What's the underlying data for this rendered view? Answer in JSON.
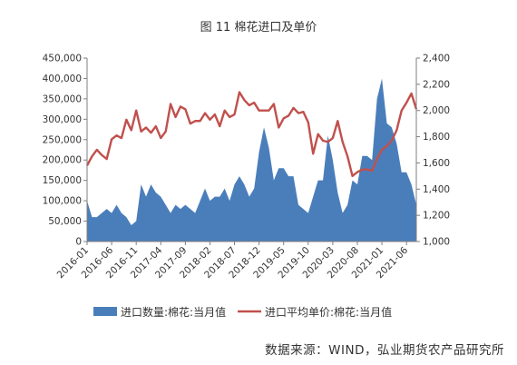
{
  "chart_data": {
    "type": "area+line",
    "title": "图 11  棉花进口及单价",
    "x_ticks": [
      "2016-01",
      "2016-06",
      "2016-11",
      "2017-04",
      "2017-09",
      "2018-02",
      "2018-07",
      "2018-12",
      "2019-05",
      "2019-10",
      "2020-03",
      "2020-08",
      "2021-01",
      "2021-06"
    ],
    "left_axis": {
      "ylim": [
        0,
        450000
      ],
      "ticks": [
        "0",
        "50,000",
        "100,000",
        "150,000",
        "200,000",
        "250,000",
        "300,000",
        "350,000",
        "400,000",
        "450,000"
      ]
    },
    "right_axis": {
      "ylim": [
        1000,
        2400
      ],
      "ticks": [
        "1,000",
        "1,200",
        "1,400",
        "1,600",
        "1,800",
        "2,000",
        "2,200",
        "2,400"
      ]
    },
    "x_start": "2016-01",
    "series": [
      {
        "name": "进口数量:棉花:当月值",
        "kind": "area",
        "axis": "left",
        "color": "#4a7ebb",
        "values": [
          100000,
          60000,
          60000,
          70000,
          80000,
          70000,
          90000,
          70000,
          60000,
          40000,
          50000,
          140000,
          110000,
          140000,
          120000,
          110000,
          90000,
          70000,
          90000,
          80000,
          90000,
          80000,
          70000,
          100000,
          130000,
          100000,
          110000,
          110000,
          130000,
          100000,
          140000,
          160000,
          140000,
          110000,
          130000,
          220000,
          280000,
          230000,
          150000,
          180000,
          180000,
          160000,
          160000,
          90000,
          80000,
          70000,
          110000,
          150000,
          150000,
          260000,
          200000,
          120000,
          70000,
          90000,
          150000,
          140000,
          210000,
          210000,
          200000,
          350000,
          400000,
          290000,
          280000,
          240000,
          170000,
          170000,
          140000,
          90000
        ]
      },
      {
        "name": "进口平均单价:棉花:当月值",
        "kind": "line",
        "axis": "right",
        "color": "#c0504d",
        "values": [
          1580,
          1650,
          1700,
          1660,
          1630,
          1780,
          1810,
          1790,
          1930,
          1850,
          2000,
          1840,
          1870,
          1830,
          1880,
          1790,
          1840,
          2050,
          1950,
          2030,
          2010,
          1900,
          1920,
          1920,
          1980,
          1930,
          1970,
          1880,
          2000,
          1950,
          1970,
          2140,
          2080,
          2040,
          2060,
          2000,
          2000,
          2000,
          2050,
          1870,
          1940,
          1960,
          2020,
          1980,
          1990,
          1910,
          1670,
          1820,
          1770,
          1760,
          1790,
          1920,
          1760,
          1650,
          1500,
          1530,
          1550,
          1550,
          1540,
          1630,
          1700,
          1730,
          1770,
          1850,
          2000,
          2060,
          2130,
          2010
        ]
      }
    ],
    "legend": {
      "position": "bottom",
      "entries": [
        {
          "label": "进口数量:棉花:当月值",
          "kind": "area",
          "color": "#4a7ebb"
        },
        {
          "label": "进口平均单价:棉花:当月值",
          "kind": "line",
          "color": "#c0504d"
        }
      ]
    },
    "grid": false
  },
  "source_note": "数据来源：WIND，弘业期货农产品研究所"
}
